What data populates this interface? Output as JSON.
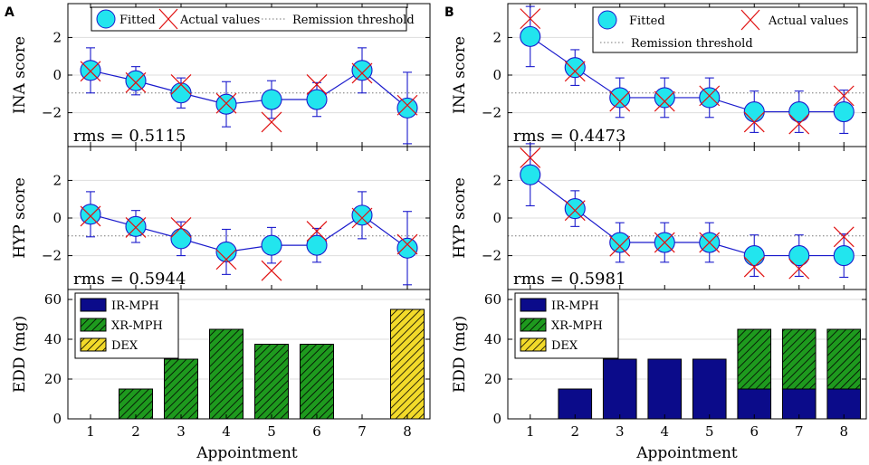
{
  "colors": {
    "fitted_fill": "#22e5ee",
    "fitted_line": "#1a1acc",
    "actual": "#e01010",
    "threshold": "#777777",
    "ir_mph": "#0b0b8a",
    "xr_mph": "#1e9a1e",
    "dex": "#f2da2a",
    "grid": "#dddddd"
  },
  "x_label": "Appointment",
  "chart_data": [
    {
      "panel": "A",
      "type": "line",
      "x": [
        1,
        2,
        3,
        4,
        5,
        6,
        7,
        8
      ],
      "ylabel": "INA score",
      "ylim": [
        -3.8,
        3.8
      ],
      "yticks": [
        2,
        0,
        -2
      ],
      "threshold": -0.95,
      "rms_label": "rms = 0.5115",
      "series": [
        {
          "name": "Fitted",
          "values": [
            0.25,
            -0.3,
            -0.95,
            -1.55,
            -1.3,
            -1.3,
            0.25,
            -1.75
          ],
          "err": [
            1.2,
            0.75,
            0.8,
            1.2,
            1.0,
            0.9,
            1.2,
            1.9
          ]
        },
        {
          "name": "Actual values",
          "values": [
            0.2,
            -0.4,
            -0.5,
            -1.5,
            -2.5,
            -0.5,
            0.1,
            -1.6
          ]
        }
      ],
      "legend": {
        "fitted": "Fitted",
        "actual": "Actual values",
        "threshold": "Remission threshold"
      }
    },
    {
      "panel": "A",
      "type": "line",
      "x": [
        1,
        2,
        3,
        4,
        5,
        6,
        7,
        8
      ],
      "ylabel": "HYP score",
      "ylim": [
        -3.8,
        3.8
      ],
      "yticks": [
        2,
        0,
        -2
      ],
      "threshold": -0.95,
      "rms_label": "rms = 0.5944",
      "series": [
        {
          "name": "Fitted",
          "values": [
            0.2,
            -0.45,
            -1.1,
            -1.8,
            -1.45,
            -1.45,
            0.15,
            -1.6
          ],
          "err": [
            1.2,
            0.85,
            0.9,
            1.2,
            0.95,
            0.9,
            1.25,
            1.95
          ]
        },
        {
          "name": "Actual values",
          "values": [
            0.1,
            -0.5,
            -0.5,
            -2.2,
            -2.8,
            -0.7,
            0.0,
            -1.4
          ]
        }
      ]
    },
    {
      "panel": "A",
      "type": "bar",
      "stacked": true,
      "ylabel": "EDD (mg)",
      "ylim": [
        0,
        65
      ],
      "yticks": [
        0,
        20,
        40,
        60
      ],
      "categories": [
        "1",
        "2",
        "3",
        "4",
        "5",
        "6",
        "7",
        "8"
      ],
      "series": [
        {
          "name": "IR-MPH",
          "values": [
            0,
            0,
            0,
            0,
            0,
            0,
            0,
            0
          ]
        },
        {
          "name": "XR-MPH",
          "values": [
            0,
            15,
            30,
            45,
            37.5,
            37.5,
            0,
            0
          ]
        },
        {
          "name": "DEX",
          "values": [
            0,
            0,
            0,
            0,
            0,
            0,
            0,
            55
          ]
        }
      ],
      "legend": [
        "IR-MPH",
        "XR-MPH",
        "DEX"
      ]
    },
    {
      "panel": "B",
      "type": "line",
      "x": [
        1,
        2,
        3,
        4,
        5,
        6,
        7,
        8
      ],
      "ylabel": "INA score",
      "ylim": [
        -3.8,
        3.8
      ],
      "yticks": [
        2,
        0,
        -2
      ],
      "threshold": -0.95,
      "rms_label": "rms = 0.4473",
      "series": [
        {
          "name": "Fitted",
          "values": [
            2.05,
            0.4,
            -1.2,
            -1.2,
            -1.2,
            -1.95,
            -1.95,
            -1.95
          ],
          "err": [
            1.6,
            0.95,
            1.05,
            1.05,
            1.05,
            1.1,
            1.1,
            1.15
          ]
        },
        {
          "name": "Actual values",
          "values": [
            3.0,
            0.2,
            -1.4,
            -1.4,
            -1.1,
            -2.5,
            -2.6,
            -1.1
          ]
        }
      ],
      "legend": {
        "fitted": "Fitted",
        "actual": "Actual values",
        "threshold": "Remission threshold"
      }
    },
    {
      "panel": "B",
      "type": "line",
      "x": [
        1,
        2,
        3,
        4,
        5,
        6,
        7,
        8
      ],
      "ylabel": "HYP score",
      "ylim": [
        -3.8,
        3.8
      ],
      "yticks": [
        2,
        0,
        -2
      ],
      "threshold": -0.95,
      "rms_label": "rms = 0.5981",
      "series": [
        {
          "name": "Fitted",
          "values": [
            2.3,
            0.5,
            -1.3,
            -1.3,
            -1.3,
            -2.0,
            -2.0,
            -2.0
          ],
          "err": [
            1.65,
            0.95,
            1.05,
            1.05,
            1.05,
            1.1,
            1.1,
            1.15
          ]
        },
        {
          "name": "Actual values",
          "values": [
            3.2,
            0.4,
            -1.5,
            -1.3,
            -1.3,
            -2.6,
            -2.7,
            -1.0
          ]
        }
      ]
    },
    {
      "panel": "B",
      "type": "bar",
      "stacked": true,
      "ylabel": "EDD (mg)",
      "ylim": [
        0,
        65
      ],
      "yticks": [
        0,
        20,
        40,
        60
      ],
      "categories": [
        "1",
        "2",
        "3",
        "4",
        "5",
        "6",
        "7",
        "8"
      ],
      "series": [
        {
          "name": "IR-MPH",
          "values": [
            0,
            15,
            30,
            30,
            30,
            15,
            15,
            15
          ]
        },
        {
          "name": "XR-MPH",
          "values": [
            0,
            0,
            0,
            0,
            0,
            30,
            30,
            30
          ]
        },
        {
          "name": "DEX",
          "values": [
            0,
            0,
            0,
            0,
            0,
            0,
            0,
            0
          ]
        }
      ],
      "legend": [
        "IR-MPH",
        "XR-MPH",
        "DEX"
      ]
    }
  ]
}
